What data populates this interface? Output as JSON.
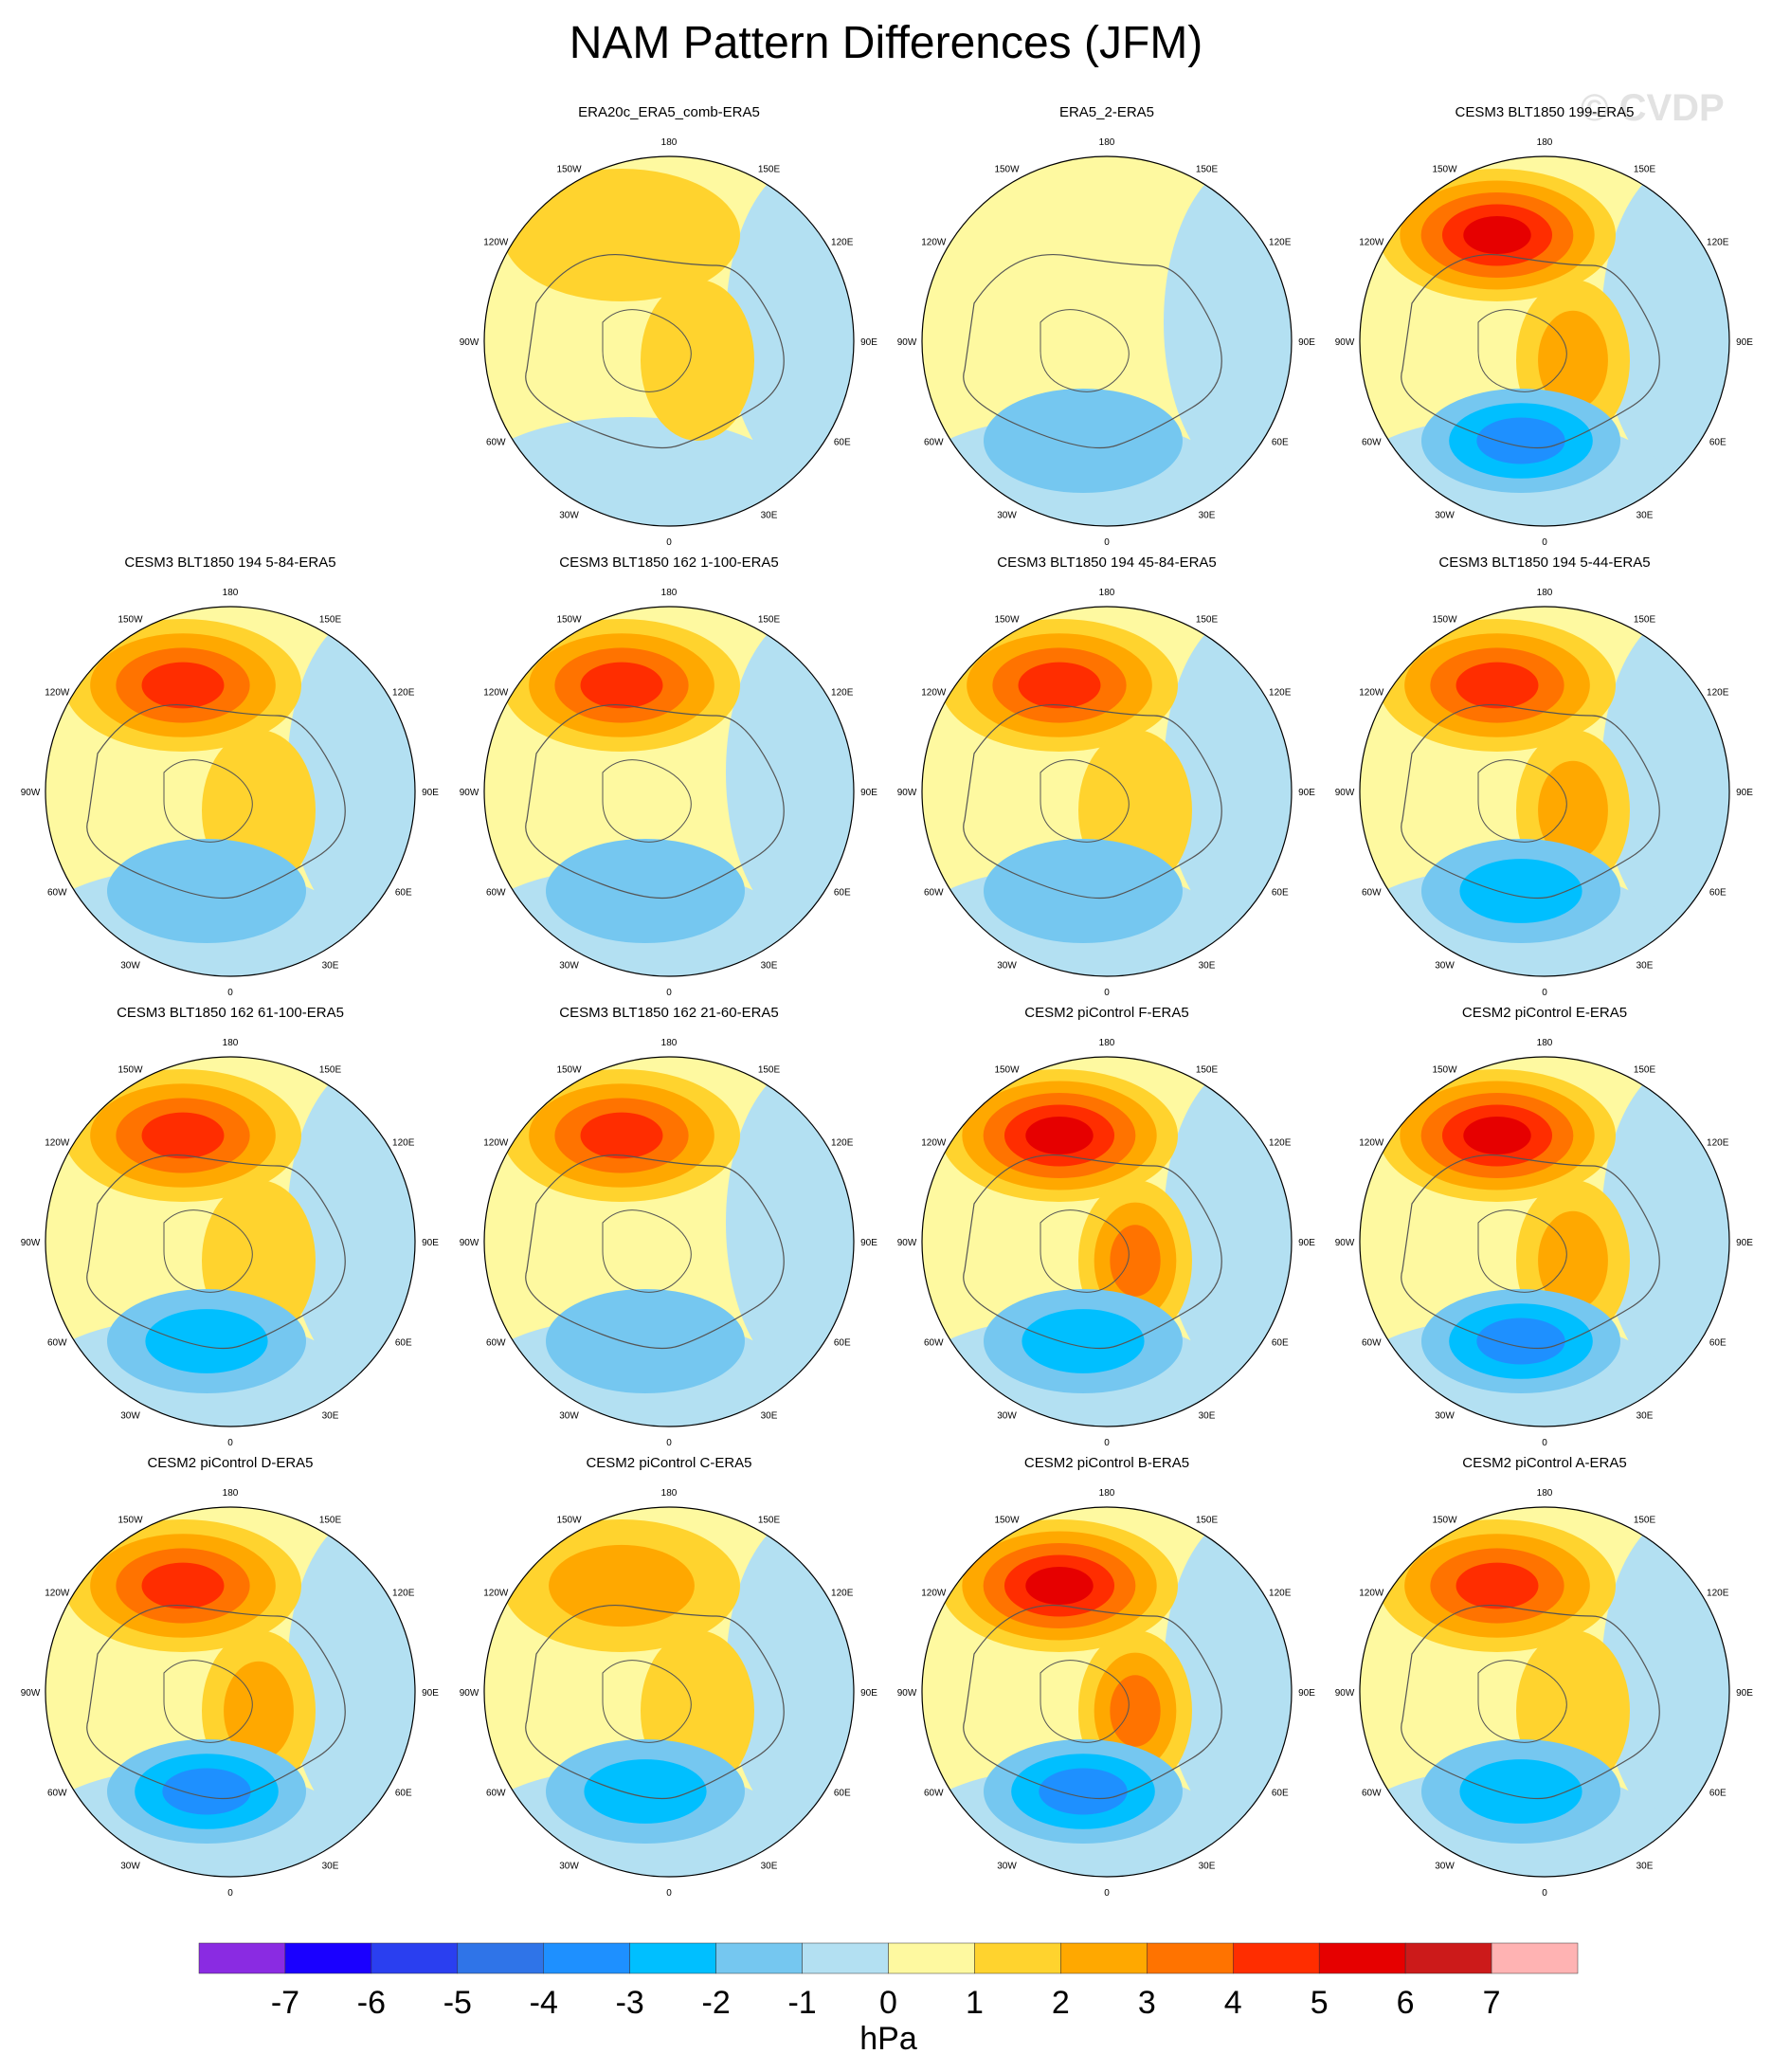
{
  "title": "NAM Pattern Differences (JFM)",
  "watermark": "© CVDP",
  "units": "hPa",
  "lon_labels": [
    "180",
    "150E",
    "120E",
    "90E",
    "60E",
    "30E",
    "0",
    "30W",
    "60W",
    "90W",
    "120W",
    "150W"
  ],
  "colorbar": {
    "colors": [
      "#8a2be2",
      "#1a00ff",
      "#2a3ff0",
      "#2f74e8",
      "#1e90ff",
      "#00bfff",
      "#75c7f0",
      "#b3e0f2",
      "#fef9a0",
      "#ffd32e",
      "#ffa800",
      "#ff7300",
      "#ff2d00",
      "#e60000",
      "#cc1a1a",
      "#ffb3b3"
    ],
    "labels": [
      "-7",
      "-6",
      "-5",
      "-4",
      "-3",
      "-2",
      "-1",
      "0",
      "1",
      "2",
      "3",
      "4",
      "5",
      "6",
      "7"
    ]
  },
  "panels": [
    {
      "title": "ERA20c_ERA5_comb-ERA5",
      "row": 0,
      "col": 1,
      "pac": 1.5,
      "eur": 1.2,
      "atl": 0.0
    },
    {
      "title": "ERA5_2-ERA5",
      "row": 0,
      "col": 2,
      "pac": 0.4,
      "eur": 0.2,
      "atl": -1.2
    },
    {
      "title": "CESM3 BLT1850 199-ERA5",
      "row": 0,
      "col": 3,
      "pac": 5.5,
      "eur": 2.5,
      "atl": -3.0
    },
    {
      "title": "CESM3 BLT1850 194 5-84-ERA5",
      "row": 1,
      "col": 0,
      "pac": 4.6,
      "eur": 1.5,
      "atl": -1.8
    },
    {
      "title": "CESM3 BLT1850 162 1-100-ERA5",
      "row": 1,
      "col": 1,
      "pac": 4.6,
      "eur": 0.6,
      "atl": -1.2
    },
    {
      "title": "CESM3 BLT1850 194 45-84-ERA5",
      "row": 1,
      "col": 2,
      "pac": 4.5,
      "eur": 1.6,
      "atl": -1.8
    },
    {
      "title": "CESM3 BLT1850 194 5-44-ERA5",
      "row": 1,
      "col": 3,
      "pac": 4.0,
      "eur": 2.2,
      "atl": -2.3
    },
    {
      "title": "CESM3 BLT1850 162 61-100-ERA5",
      "row": 2,
      "col": 0,
      "pac": 4.8,
      "eur": 1.6,
      "atl": -2.2
    },
    {
      "title": "CESM3 BLT1850 162 21-60-ERA5",
      "row": 2,
      "col": 1,
      "pac": 4.6,
      "eur": 0.8,
      "atl": -1.8
    },
    {
      "title": "CESM2 piControl F-ERA5",
      "row": 2,
      "col": 2,
      "pac": 5.7,
      "eur": 3.0,
      "atl": -2.2
    },
    {
      "title": "CESM2 piControl E-ERA5",
      "row": 2,
      "col": 3,
      "pac": 5.3,
      "eur": 2.2,
      "atl": -3.8
    },
    {
      "title": "CESM2 piControl D-ERA5",
      "row": 3,
      "col": 0,
      "pac": 4.8,
      "eur": 2.2,
      "atl": -3.2
    },
    {
      "title": "CESM2 piControl C-ERA5",
      "row": 3,
      "col": 1,
      "pac": 2.8,
      "eur": 1.2,
      "atl": -2.6
    },
    {
      "title": "CESM2 piControl B-ERA5",
      "row": 3,
      "col": 2,
      "pac": 5.5,
      "eur": 3.2,
      "atl": -3.2
    },
    {
      "title": "CESM2 piControl A-ERA5",
      "row": 3,
      "col": 3,
      "pac": 4.5,
      "eur": 1.2,
      "atl": -2.3
    }
  ]
}
